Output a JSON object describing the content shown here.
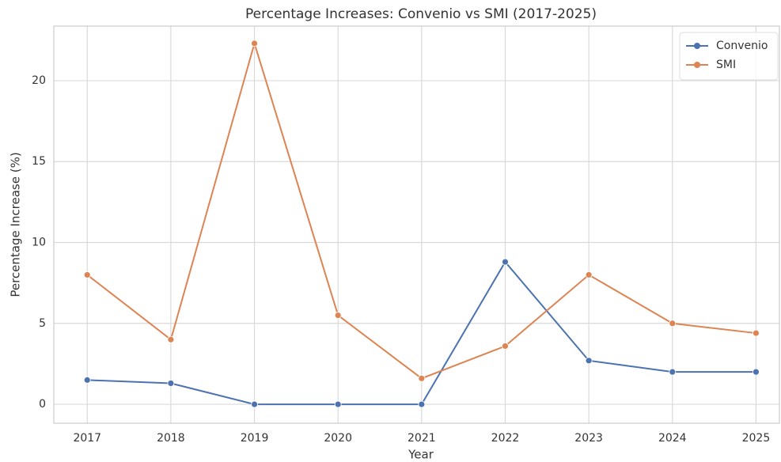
{
  "chart_data": {
    "type": "line",
    "title": "Percentage Increases: Convenio vs SMI (2017-2025)",
    "x_label": "Year",
    "y_label": "Percentage Increase (%)",
    "x": [
      2017,
      2018,
      2019,
      2020,
      2021,
      2022,
      2023,
      2024,
      2025
    ],
    "series": [
      {
        "name": "Convenio",
        "color": "#4c72b0",
        "values": [
          1.5,
          1.3,
          0,
          0,
          0,
          8.8,
          2.7,
          2.0,
          2.0
        ]
      },
      {
        "name": "SMI",
        "color": "#dd8452",
        "values": [
          8.0,
          4.0,
          22.3,
          5.5,
          1.6,
          3.6,
          8.0,
          5.0,
          4.4
        ]
      }
    ],
    "xlim": [
      2016.6,
      2025.28
    ],
    "xticks": [
      2017,
      2018,
      2019,
      2020,
      2021,
      2022,
      2023,
      2024,
      2025
    ],
    "ylim": [
      -1.17,
      23.37
    ],
    "yticks": [
      0,
      5,
      10,
      15,
      20
    ],
    "grid": true,
    "legend": "upper right"
  }
}
